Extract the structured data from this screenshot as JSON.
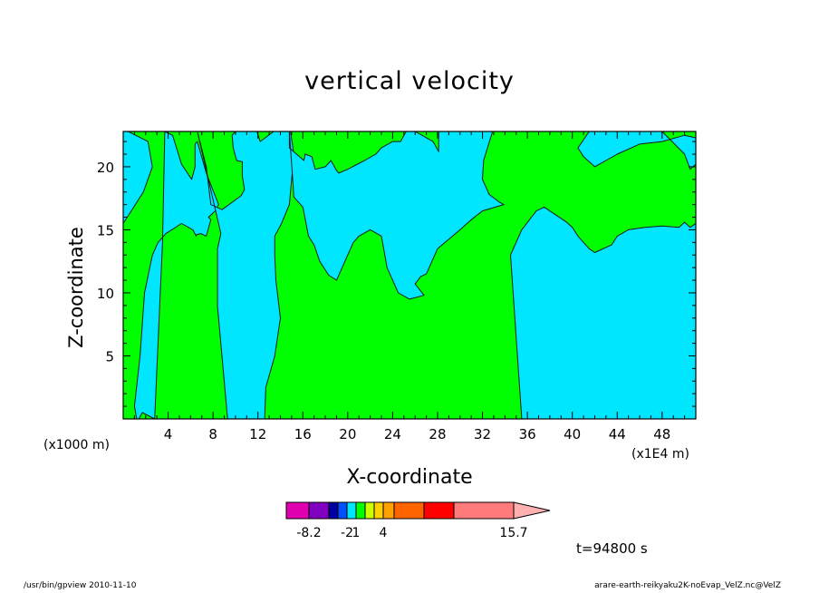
{
  "title": "vertical velocity",
  "footer": {
    "program": "/usr/bin/gpview   2010-11-10",
    "source": "arare-earth-reikyaku2K-noEvap_VelZ.nc@VelZ"
  },
  "time_label": "t=94800 s",
  "colors": {
    "upward_fill": "#00ff00",
    "downward_fill": "#00e6ff",
    "contour": "#1a1a1a"
  },
  "colorbar": {
    "colors": [
      "#e000b0",
      "#8000c0",
      "#0000a0",
      "#0050ff",
      "#00e6ff",
      "#00ff00",
      "#ccff00",
      "#ffd000",
      "#ffa000",
      "#ff6400",
      "#ff0000",
      "#ff7a7a",
      "#ffb0b0"
    ],
    "tick_labels": [
      "-8.2",
      "-2",
      "1",
      "4",
      "15.7"
    ]
  },
  "chart_data": {
    "type": "heatmap",
    "title": "vertical velocity",
    "xlabel": "X-coordinate",
    "ylabel": "Z-coordinate",
    "x_unit": "(x1000 m)",
    "x_unit_alt": "(x1E4 m)",
    "xlim": [
      0,
      51
    ],
    "ylim": [
      0,
      22.8
    ],
    "x_ticks": [
      4,
      8,
      12,
      16,
      20,
      24,
      28,
      32,
      36,
      40,
      44,
      48
    ],
    "y_ticks": [
      5,
      10,
      15,
      20
    ],
    "description_levels": "two-level field: green = weak upward motion, cyan = weak downward motion",
    "regions": [
      {
        "level": "downward",
        "x": [
          0,
          2.2,
          2.6,
          1.8,
          0
        ],
        "y": [
          23,
          22,
          20,
          18,
          15.5
        ]
      },
      {
        "level": "downward",
        "x": [
          3.7,
          4.4,
          5.2,
          6.1,
          6.4,
          6.4,
          6.4,
          6.6,
          7.4,
          8.5,
          8.2,
          7.6,
          7.8,
          7.4,
          6.9,
          6.5,
          6.5,
          6.2,
          5.2,
          3.8,
          3.1,
          2.6,
          1.9,
          1.5,
          1.0,
          1.2,
          1.4,
          1.7,
          2.8,
          3.5,
          3.7
        ],
        "y": [
          22.8,
          22.5,
          20.2,
          19,
          20,
          20.7,
          21.8,
          22,
          19.5,
          17,
          16.5,
          16,
          15.8,
          14.5,
          14.7,
          14.6,
          14.5,
          15,
          15.5,
          14.7,
          14,
          13,
          10,
          5,
          1,
          0,
          0,
          0.5,
          0,
          14,
          22.8
        ]
      },
      {
        "level": "downward",
        "x": [
          6.6,
          7.4,
          7.8,
          8.8,
          10.5,
          10.8,
          10.6,
          10.6,
          10.1,
          9.8,
          9.7,
          10.0,
          10.3,
          11.0,
          11.9,
          12.2,
          13.4,
          13.9,
          14.3,
          14.6,
          14.9,
          15.2,
          14.8,
          14.1,
          13.5,
          13.5,
          13.6,
          14.0,
          13.5,
          12.7,
          12.6,
          12.1,
          11.6,
          10.7,
          10.1,
          9.6,
          9.3,
          8.4,
          8.4,
          8.7,
          6.6
        ],
        "y": [
          22.8,
          20,
          17,
          16.6,
          17.7,
          18.2,
          19.3,
          20.4,
          20.5,
          21.5,
          22.5,
          22.8,
          22.8,
          22.8,
          22.8,
          22,
          22.8,
          22.8,
          22.8,
          22.8,
          22.8,
          21,
          17,
          15.5,
          14.5,
          13,
          11,
          8,
          5,
          2.5,
          0,
          0,
          0,
          0,
          0,
          0,
          0,
          8.9,
          13.5,
          14.7,
          22.8
        ]
      },
      {
        "level": "downward",
        "x": [
          14.8,
          14.8,
          16.1,
          16.2,
          16.8,
          17.1,
          18.0,
          18.5,
          19.0,
          19.2,
          20.0,
          21.5,
          22.5,
          23.0,
          24.0,
          24.7,
          25.2,
          25.6,
          26.0,
          27.6,
          28.1,
          28.1,
          28.4,
          29.0,
          30.0,
          31.5,
          32.9,
          32.1,
          32.0,
          32.6,
          33.5,
          33.9,
          32.0,
          31.0,
          30.0,
          28.0,
          27.0,
          26.5,
          26.0,
          26.8,
          25.5,
          24.5,
          23.5,
          23.0,
          22.0,
          21.0,
          20.5,
          20.0,
          19.0,
          18.3,
          17.5,
          17.0,
          16.5,
          16.0,
          15.2,
          14.8
        ],
        "y": [
          22.8,
          21.5,
          20.5,
          21,
          20.8,
          19.8,
          20,
          20.5,
          19.7,
          19.5,
          19.8,
          20.5,
          21,
          21.5,
          22,
          22,
          22.8,
          22.8,
          22.8,
          22,
          21.2,
          22.8,
          22.8,
          22.8,
          22.8,
          22.8,
          22.8,
          20.5,
          19,
          17.8,
          17.2,
          17,
          16.5,
          15.8,
          15,
          13.5,
          11.5,
          11.3,
          10.7,
          9.8,
          9.5,
          10,
          12,
          14.5,
          15,
          14.5,
          14,
          13,
          11,
          11.4,
          12.5,
          13.8,
          14.5,
          16.8,
          17.6,
          22.8
        ]
      },
      {
        "level": "downward",
        "x": [
          34.5,
          35.5,
          36.8,
          37.5,
          38.5,
          39.5,
          40.0,
          40.5,
          41.0,
          41.5,
          42.0,
          43.5,
          44.0,
          45.0,
          46.5,
          48.0,
          49.5,
          50.0,
          50.5,
          51.0,
          51,
          49.5,
          48.0,
          47.0,
          45.0,
          43.0,
          41.0,
          39.0,
          37.0,
          35.5,
          34.5
        ],
        "y": [
          13,
          15,
          16.5,
          16.8,
          16.2,
          15.6,
          15.2,
          14.5,
          14,
          13.5,
          13.2,
          13.8,
          14.5,
          15,
          15.2,
          15.3,
          15.2,
          15.6,
          15.2,
          15.5,
          0,
          0,
          0,
          0,
          0,
          0,
          0,
          0,
          0,
          0,
          13
        ]
      },
      {
        "level": "downward",
        "x": [
          40.5,
          41.0,
          42.0,
          44.0,
          46.0,
          48.0,
          50.0,
          51.0,
          51,
          50.5,
          50.0,
          48.0,
          45.0,
          43.0,
          41.5,
          40.5
        ],
        "y": [
          21.5,
          20.8,
          20,
          21,
          21.8,
          22,
          22.5,
          22.3,
          20.2,
          19.8,
          21,
          22.8,
          22.8,
          22.8,
          22.8,
          21.5
        ]
      }
    ],
    "colorbar": {
      "ticks": [
        -8.2,
        -2,
        1,
        4,
        15.7
      ],
      "extend": "max"
    }
  }
}
